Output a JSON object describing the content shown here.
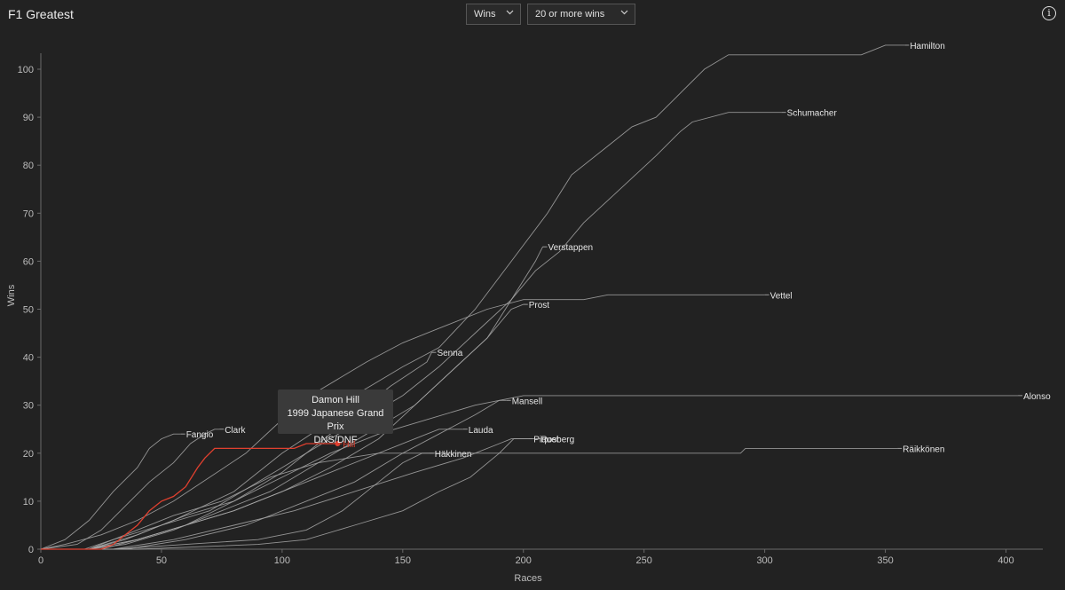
{
  "app": {
    "title": "F1 Greatest"
  },
  "controls": {
    "metric": {
      "value": "Wins",
      "options": [
        "Wins"
      ]
    },
    "filter": {
      "value": "20 or more wins",
      "options": [
        "20 or more wins"
      ]
    }
  },
  "colors": {
    "background": "#222222",
    "line": "#a8a8a8",
    "highlight": "#e0402f",
    "text": "#e6e6e6"
  },
  "icons": {
    "info": "info-icon",
    "chevron": "chevron-down-icon"
  },
  "tooltip": {
    "driver": "Damon Hill",
    "race": "1999 Japanese Grand Prix",
    "result": "DNS/DNF"
  },
  "chart_data": {
    "type": "line",
    "xlabel": "Races",
    "ylabel": "Wins",
    "xlim": [
      0,
      420
    ],
    "ylim": [
      0,
      105
    ],
    "xticks": [
      0,
      50,
      100,
      150,
      200,
      250,
      300,
      350,
      400
    ],
    "yticks": [
      0,
      10,
      20,
      30,
      40,
      50,
      60,
      70,
      80,
      90,
      100
    ],
    "grid": false,
    "highlighted_series": "Hill",
    "series": [
      {
        "name": "Hamilton",
        "points": [
          [
            0,
            0
          ],
          [
            20,
            0
          ],
          [
            35,
            2
          ],
          [
            55,
            6
          ],
          [
            80,
            12
          ],
          [
            100,
            20
          ],
          [
            115,
            25
          ],
          [
            130,
            32
          ],
          [
            150,
            38
          ],
          [
            165,
            42
          ],
          [
            180,
            50
          ],
          [
            195,
            60
          ],
          [
            210,
            70
          ],
          [
            220,
            78
          ],
          [
            235,
            84
          ],
          [
            245,
            88
          ],
          [
            255,
            90
          ],
          [
            265,
            95
          ],
          [
            275,
            100
          ],
          [
            285,
            103
          ],
          [
            300,
            103
          ],
          [
            340,
            103
          ],
          [
            345,
            104
          ],
          [
            350,
            105
          ],
          [
            358,
            105
          ]
        ],
        "label_at": [
          358,
          105
        ]
      },
      {
        "name": "Schumacher",
        "points": [
          [
            0,
            0
          ],
          [
            18,
            0
          ],
          [
            30,
            2
          ],
          [
            50,
            5
          ],
          [
            70,
            8
          ],
          [
            90,
            14
          ],
          [
            110,
            20
          ],
          [
            130,
            26
          ],
          [
            150,
            32
          ],
          [
            165,
            38
          ],
          [
            180,
            45
          ],
          [
            195,
            52
          ],
          [
            205,
            58
          ],
          [
            215,
            62
          ],
          [
            225,
            68
          ],
          [
            240,
            75
          ],
          [
            255,
            82
          ],
          [
            265,
            87
          ],
          [
            270,
            89
          ],
          [
            285,
            91
          ],
          [
            307,
            91
          ]
        ],
        "label_at": [
          307,
          91
        ]
      },
      {
        "name": "Verstappen",
        "points": [
          [
            0,
            0
          ],
          [
            20,
            0
          ],
          [
            40,
            2
          ],
          [
            60,
            5
          ],
          [
            80,
            8
          ],
          [
            100,
            12
          ],
          [
            120,
            17
          ],
          [
            140,
            23
          ],
          [
            155,
            30
          ],
          [
            170,
            37
          ],
          [
            185,
            44
          ],
          [
            195,
            52
          ],
          [
            205,
            60
          ],
          [
            208,
            63
          ]
        ],
        "label_at": [
          208,
          63
        ]
      },
      {
        "name": "Vettel",
        "points": [
          [
            0,
            0
          ],
          [
            10,
            1
          ],
          [
            25,
            3
          ],
          [
            40,
            6
          ],
          [
            55,
            10
          ],
          [
            70,
            15
          ],
          [
            85,
            20
          ],
          [
            100,
            27
          ],
          [
            115,
            33
          ],
          [
            135,
            39
          ],
          [
            150,
            43
          ],
          [
            165,
            46
          ],
          [
            185,
            50
          ],
          [
            200,
            52
          ],
          [
            225,
            52
          ],
          [
            235,
            53
          ],
          [
            250,
            53
          ],
          [
            290,
            53
          ],
          [
            300,
            53
          ]
        ],
        "label_at": [
          300,
          53
        ]
      },
      {
        "name": "Prost",
        "points": [
          [
            0,
            0
          ],
          [
            20,
            0
          ],
          [
            35,
            1
          ],
          [
            55,
            4
          ],
          [
            75,
            8
          ],
          [
            95,
            12
          ],
          [
            115,
            18
          ],
          [
            135,
            24
          ],
          [
            155,
            30
          ],
          [
            170,
            37
          ],
          [
            185,
            44
          ],
          [
            195,
            50
          ],
          [
            200,
            51
          ]
        ],
        "label_at": [
          200,
          51
        ]
      },
      {
        "name": "Senna",
        "points": [
          [
            0,
            0
          ],
          [
            25,
            0
          ],
          [
            40,
            2
          ],
          [
            60,
            5
          ],
          [
            80,
            10
          ],
          [
            100,
            16
          ],
          [
            115,
            22
          ],
          [
            130,
            28
          ],
          [
            145,
            34
          ],
          [
            160,
            39
          ],
          [
            162,
            41
          ]
        ],
        "label_at": [
          162,
          41
        ]
      },
      {
        "name": "Alonso",
        "points": [
          [
            0,
            0
          ],
          [
            20,
            0
          ],
          [
            40,
            3
          ],
          [
            60,
            7
          ],
          [
            80,
            10
          ],
          [
            100,
            15
          ],
          [
            120,
            20
          ],
          [
            140,
            24
          ],
          [
            160,
            27
          ],
          [
            180,
            30
          ],
          [
            200,
            32
          ],
          [
            300,
            32
          ],
          [
            400,
            32
          ],
          [
            405,
            32
          ]
        ],
        "label_at": [
          405,
          32
        ]
      },
      {
        "name": "Mansell",
        "points": [
          [
            0,
            0
          ],
          [
            35,
            0
          ],
          [
            60,
            2
          ],
          [
            85,
            5
          ],
          [
            110,
            10
          ],
          [
            130,
            14
          ],
          [
            150,
            20
          ],
          [
            165,
            24
          ],
          [
            180,
            28
          ],
          [
            190,
            31
          ],
          [
            193,
            31
          ]
        ],
        "label_at": [
          193,
          31
        ]
      },
      {
        "name": "Lauda",
        "points": [
          [
            0,
            0
          ],
          [
            20,
            0
          ],
          [
            40,
            2
          ],
          [
            60,
            5
          ],
          [
            80,
            8
          ],
          [
            100,
            12
          ],
          [
            120,
            16
          ],
          [
            140,
            20
          ],
          [
            155,
            23
          ],
          [
            165,
            25
          ],
          [
            175,
            25
          ]
        ],
        "label_at": [
          175,
          25
        ]
      },
      {
        "name": "Piquet",
        "points": [
          [
            0,
            0
          ],
          [
            30,
            0
          ],
          [
            55,
            2
          ],
          [
            80,
            5
          ],
          [
            105,
            8
          ],
          [
            130,
            12
          ],
          [
            155,
            16
          ],
          [
            175,
            19
          ],
          [
            190,
            22
          ],
          [
            195,
            23
          ],
          [
            202,
            23
          ]
        ],
        "label_at": [
          202,
          23
        ]
      },
      {
        "name": "Rosberg",
        "points": [
          [
            0,
            0
          ],
          [
            40,
            0
          ],
          [
            90,
            1
          ],
          [
            110,
            2
          ],
          [
            130,
            5
          ],
          [
            150,
            8
          ],
          [
            165,
            12
          ],
          [
            178,
            15
          ],
          [
            190,
            20
          ],
          [
            196,
            23
          ],
          [
            205,
            23
          ]
        ],
        "label_at": [
          205,
          23
        ]
      },
      {
        "name": "Häkkinen",
        "points": [
          [
            0,
            0
          ],
          [
            30,
            0
          ],
          [
            60,
            1
          ],
          [
            90,
            2
          ],
          [
            110,
            4
          ],
          [
            125,
            8
          ],
          [
            140,
            14
          ],
          [
            150,
            18
          ],
          [
            158,
            20
          ],
          [
            161,
            20
          ]
        ],
        "label_at": [
          161,
          20
        ]
      },
      {
        "name": "Räikkönen",
        "points": [
          [
            0,
            0
          ],
          [
            20,
            0
          ],
          [
            35,
            3
          ],
          [
            55,
            7
          ],
          [
            75,
            10
          ],
          [
            95,
            15
          ],
          [
            115,
            18
          ],
          [
            140,
            20
          ],
          [
            200,
            20
          ],
          [
            260,
            20
          ],
          [
            290,
            20
          ],
          [
            292,
            21
          ],
          [
            350,
            21
          ],
          [
            355,
            21
          ]
        ],
        "label_at": [
          355,
          21
        ]
      },
      {
        "name": "Fangio",
        "points": [
          [
            0,
            0
          ],
          [
            10,
            2
          ],
          [
            20,
            6
          ],
          [
            30,
            12
          ],
          [
            40,
            17
          ],
          [
            45,
            21
          ],
          [
            50,
            23
          ],
          [
            55,
            24
          ],
          [
            58,
            24
          ]
        ],
        "label_at": [
          58,
          24
        ]
      },
      {
        "name": "Clark",
        "points": [
          [
            0,
            0
          ],
          [
            15,
            1
          ],
          [
            25,
            4
          ],
          [
            35,
            9
          ],
          [
            45,
            14
          ],
          [
            55,
            18
          ],
          [
            62,
            22
          ],
          [
            68,
            24
          ],
          [
            72,
            25
          ],
          [
            74,
            25
          ]
        ],
        "label_at": [
          74,
          25
        ]
      },
      {
        "name": "Hill",
        "points": [
          [
            0,
            0
          ],
          [
            25,
            0
          ],
          [
            30,
            1
          ],
          [
            35,
            3
          ],
          [
            40,
            5
          ],
          [
            45,
            8
          ],
          [
            50,
            10
          ],
          [
            55,
            11
          ],
          [
            60,
            13
          ],
          [
            65,
            17
          ],
          [
            68,
            19
          ],
          [
            72,
            21
          ],
          [
            80,
            21
          ],
          [
            85,
            21
          ],
          [
            90,
            21
          ],
          [
            95,
            21
          ],
          [
            100,
            21
          ],
          [
            105,
            21
          ],
          [
            110,
            22
          ],
          [
            115,
            22
          ],
          [
            123,
            22
          ]
        ],
        "label_at": [
          123,
          22
        ]
      }
    ]
  }
}
